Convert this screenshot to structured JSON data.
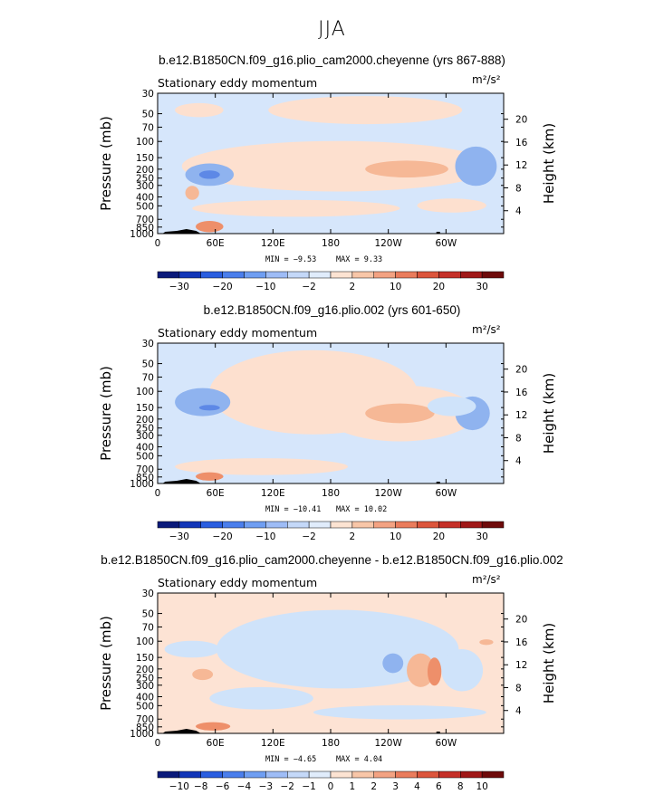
{
  "title": "JJA",
  "units": "m²/s²",
  "chart_data": [
    {
      "type": "heatmap",
      "title": "b.e12.B1850CN.f09_g16.plio_cam2000.cheyenne (yrs 867-888)",
      "subtitle": "Stationary eddy momentum",
      "units": "m²/s²",
      "ylabel": "Pressure (mb)",
      "y2label": "Height (km)",
      "xticks": [
        "0",
        "60E",
        "120E",
        "180",
        "120W",
        "60W"
      ],
      "yticks": [
        "30",
        "50",
        "70",
        "100",
        "150",
        "200",
        "250",
        "300",
        "400",
        "500",
        "700",
        "850",
        "1000"
      ],
      "y2ticks": [
        "20",
        "16",
        "12",
        "8",
        "4"
      ],
      "min_label": "MIN = −9.53",
      "max_label": "MAX = 9.33",
      "colorbar_labels": [
        "−30",
        "−20",
        "−10",
        "−2",
        "2",
        "10",
        "20",
        "30"
      ],
      "colorbar_levels": [
        -30,
        -20,
        -10,
        -2,
        2,
        10,
        20,
        30
      ],
      "colorbar_colors": [
        "#0a1a7a",
        "#1236b8",
        "#2a5ee0",
        "#4a7eec",
        "#6f9ef2",
        "#9ebcf6",
        "#c4d8f8",
        "#e0ecfb",
        "#fce3d2",
        "#f8c6a8",
        "#f3a282",
        "#ea7c5c",
        "#dc553c",
        "#c53028",
        "#a01818",
        "#6e0a0a"
      ],
      "value_range": [
        -9.53,
        9.33
      ]
    },
    {
      "type": "heatmap",
      "title": "b.e12.B1850CN.f09_g16.plio.002 (yrs 601-650)",
      "subtitle": "Stationary eddy momentum",
      "units": "m²/s²",
      "ylabel": "Pressure (mb)",
      "y2label": "Height (km)",
      "xticks": [
        "0",
        "60E",
        "120E",
        "180",
        "120W",
        "60W"
      ],
      "yticks": [
        "30",
        "50",
        "70",
        "100",
        "150",
        "200",
        "250",
        "300",
        "400",
        "500",
        "700",
        "850",
        "1000"
      ],
      "y2ticks": [
        "20",
        "16",
        "12",
        "8",
        "4"
      ],
      "min_label": "MIN = −10.41",
      "max_label": "MAX = 10.02",
      "colorbar_labels": [
        "−30",
        "−20",
        "−10",
        "−2",
        "2",
        "10",
        "20",
        "30"
      ],
      "colorbar_levels": [
        -30,
        -20,
        -10,
        -2,
        2,
        10,
        20,
        30
      ],
      "colorbar_colors": [
        "#0a1a7a",
        "#1236b8",
        "#2a5ee0",
        "#4a7eec",
        "#6f9ef2",
        "#9ebcf6",
        "#c4d8f8",
        "#e0ecfb",
        "#fce3d2",
        "#f8c6a8",
        "#f3a282",
        "#ea7c5c",
        "#dc553c",
        "#c53028",
        "#a01818",
        "#6e0a0a"
      ],
      "value_range": [
        -10.41,
        10.02
      ]
    },
    {
      "type": "heatmap",
      "title": "b.e12.B1850CN.f09_g16.plio_cam2000.cheyenne - b.e12.B1850CN.f09_g16.plio.002",
      "subtitle": "Stationary eddy momentum",
      "units": "m²/s²",
      "ylabel": "Pressure (mb)",
      "y2label": "Height (km)",
      "xticks": [
        "0",
        "60E",
        "120E",
        "180",
        "120W",
        "60W"
      ],
      "yticks": [
        "30",
        "50",
        "70",
        "100",
        "150",
        "200",
        "250",
        "300",
        "400",
        "500",
        "700",
        "850",
        "1000"
      ],
      "y2ticks": [
        "20",
        "16",
        "12",
        "8",
        "4"
      ],
      "min_label": "MIN = −4.65",
      "max_label": "MAX = 4.04",
      "colorbar_labels": [
        "−10",
        "−8",
        "−6",
        "−4",
        "−3",
        "−2",
        "−1",
        "0",
        "1",
        "2",
        "3",
        "4",
        "6",
        "8",
        "10"
      ],
      "colorbar_levels": [
        -10,
        -8,
        -6,
        -4,
        -3,
        -2,
        -1,
        0,
        1,
        2,
        3,
        4,
        6,
        8,
        10
      ],
      "colorbar_colors": [
        "#0a1a7a",
        "#1236b8",
        "#2a5ee0",
        "#4a7eec",
        "#6f9ef2",
        "#9ebcf6",
        "#c4d8f8",
        "#e0ecfb",
        "#fce3d2",
        "#f8c6a8",
        "#f3a282",
        "#ea7c5c",
        "#dc553c",
        "#c53028",
        "#a01818",
        "#6e0a0a"
      ],
      "value_range": [
        -4.65,
        4.04
      ]
    }
  ]
}
